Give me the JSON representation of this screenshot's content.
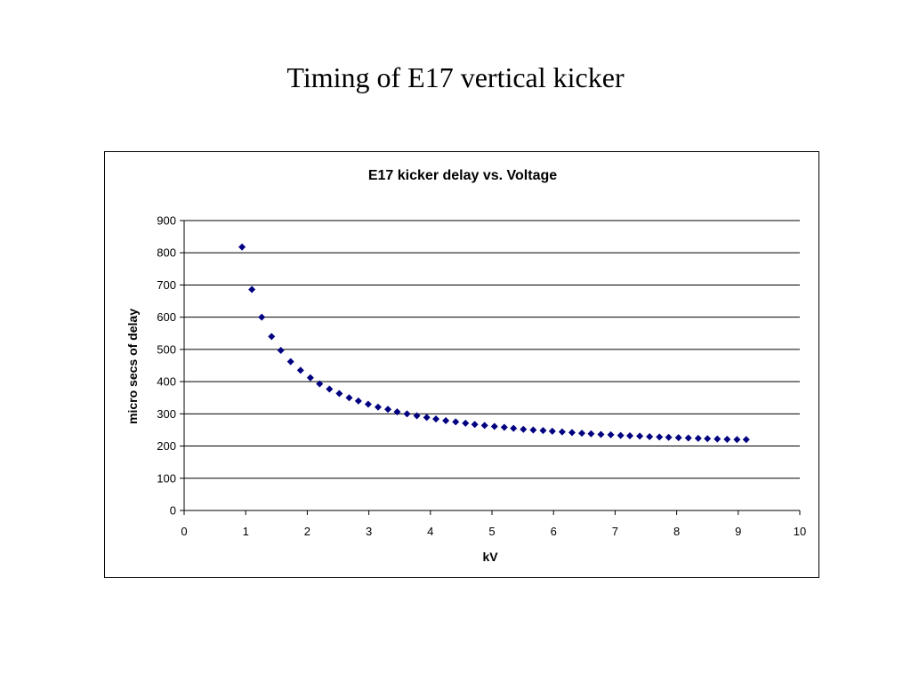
{
  "slide": {
    "title": "Timing of E17 vertical kicker"
  },
  "chart_data": {
    "type": "scatter",
    "title": "E17 kicker delay vs. Voltage",
    "xlabel": "kV",
    "ylabel": "micro secs of delay",
    "xlim": [
      0,
      10
    ],
    "ylim": [
      0,
      900
    ],
    "xticks": [
      0,
      1,
      2,
      3,
      4,
      5,
      6,
      7,
      8,
      9,
      10
    ],
    "yticks": [
      0,
      100,
      200,
      300,
      400,
      500,
      600,
      700,
      800,
      900
    ],
    "grid": "horizontal",
    "legend": "none",
    "marker": "diamond",
    "color": "#000080",
    "series": [
      {
        "x": [
          0.94,
          1.1,
          1.26,
          1.42,
          1.57,
          1.73,
          1.89,
          2.05,
          2.2,
          2.36,
          2.52,
          2.68,
          2.83,
          2.99,
          3.15,
          3.31,
          3.46,
          3.62,
          3.78,
          3.94,
          4.09,
          4.25,
          4.41,
          4.57,
          4.72,
          4.88,
          5.04,
          5.2,
          5.35,
          5.51,
          5.67,
          5.83,
          5.98,
          6.14,
          6.3,
          6.46,
          6.61,
          6.77,
          6.93,
          7.09,
          7.24,
          7.4,
          7.56,
          7.72,
          7.87,
          8.03,
          8.19,
          8.35,
          8.5,
          8.66,
          8.82,
          8.98,
          9.13
        ],
        "y": [
          818,
          686,
          600,
          540,
          497,
          462,
          435,
          412,
          393,
          377,
          363,
          350,
          340,
          330,
          321,
          314,
          306,
          300,
          294,
          289,
          284,
          279,
          275,
          271,
          267,
          264,
          261,
          258,
          255,
          252,
          250,
          248,
          246,
          244,
          242,
          240,
          238,
          236,
          235,
          233,
          232,
          231,
          229,
          228,
          227,
          226,
          225,
          224,
          223,
          222,
          221,
          220,
          220
        ]
      }
    ]
  }
}
